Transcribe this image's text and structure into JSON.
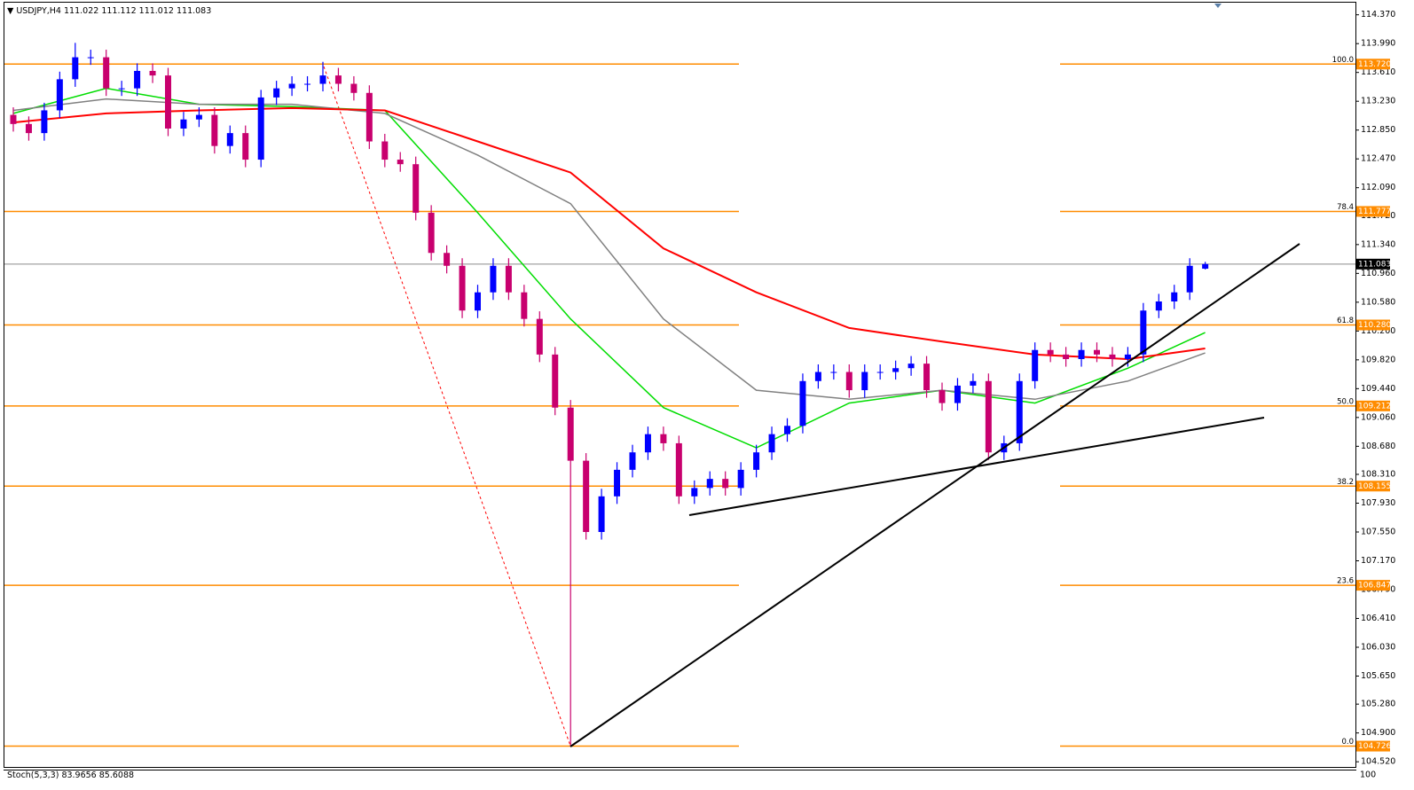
{
  "chart_data": {
    "type": "candlestick",
    "title": "USDJPY,H4",
    "open": [
      113.05,
      112.93,
      112.81,
      113.11,
      113.52,
      113.81,
      113.81,
      113.4,
      113.4,
      113.63,
      113.57,
      112.87,
      112.99,
      113.05,
      112.64,
      112.81,
      112.46,
      113.28,
      113.4,
      113.46,
      113.46,
      113.57,
      113.46,
      113.34,
      112.7,
      112.46,
      112.4,
      111.76,
      111.23,
      111.06,
      110.47,
      110.71,
      111.06,
      110.71,
      110.36,
      109.89,
      109.19,
      108.49,
      107.55,
      108.02,
      108.37,
      108.6,
      108.84,
      108.72,
      108.02,
      108.13,
      108.25,
      108.13,
      108.37,
      108.6,
      108.84,
      108.95,
      109.54,
      109.66,
      109.66,
      109.42,
      109.66,
      109.66,
      109.71,
      109.77,
      109.42,
      109.25,
      109.48,
      109.54,
      108.6,
      108.72,
      109.54,
      109.95,
      109.89,
      109.83,
      109.95,
      109.89,
      109.83,
      109.89,
      110.47,
      110.59,
      110.71,
      111.022
    ],
    "high": [
      113.15,
      113.03,
      113.21,
      113.62,
      114.0,
      113.91,
      113.91,
      113.5,
      113.73,
      113.73,
      113.67,
      113.09,
      113.15,
      113.15,
      112.91,
      112.91,
      113.38,
      113.5,
      113.56,
      113.56,
      113.75,
      113.67,
      113.56,
      113.44,
      112.8,
      112.56,
      112.5,
      111.86,
      111.33,
      111.16,
      110.81,
      111.16,
      111.16,
      110.81,
      110.46,
      109.99,
      109.29,
      108.59,
      108.12,
      108.47,
      108.7,
      108.94,
      108.94,
      108.82,
      108.23,
      108.35,
      108.35,
      108.47,
      108.7,
      108.94,
      109.05,
      109.64,
      109.76,
      109.76,
      109.76,
      109.76,
      109.76,
      109.81,
      109.87,
      109.87,
      109.52,
      109.58,
      109.64,
      109.64,
      108.82,
      109.64,
      110.05,
      110.05,
      109.99,
      110.05,
      110.05,
      109.99,
      109.99,
      110.57,
      110.69,
      110.81,
      111.16,
      111.112
    ],
    "low": [
      112.83,
      112.71,
      112.71,
      113.01,
      113.42,
      113.71,
      113.3,
      113.3,
      113.3,
      113.47,
      112.77,
      112.77,
      112.89,
      112.54,
      112.54,
      112.36,
      112.36,
      113.18,
      113.3,
      113.36,
      113.36,
      113.36,
      113.24,
      112.6,
      112.36,
      112.3,
      111.66,
      111.13,
      110.96,
      110.37,
      110.37,
      110.61,
      110.61,
      110.26,
      109.79,
      109.09,
      104.726,
      107.45,
      107.45,
      107.92,
      108.27,
      108.5,
      108.62,
      107.92,
      107.92,
      108.03,
      108.03,
      108.03,
      108.27,
      108.5,
      108.74,
      108.85,
      109.44,
      109.56,
      109.32,
      109.32,
      109.56,
      109.56,
      109.61,
      109.32,
      109.15,
      109.15,
      109.38,
      108.5,
      108.5,
      108.62,
      109.44,
      109.79,
      109.73,
      109.73,
      109.79,
      109.73,
      109.73,
      109.79,
      110.37,
      110.49,
      110.61,
      111.012
    ],
    "close": [
      112.93,
      112.81,
      113.11,
      113.52,
      113.81,
      113.81,
      113.4,
      113.4,
      113.63,
      113.57,
      112.87,
      112.99,
      113.05,
      112.64,
      112.81,
      112.46,
      113.28,
      113.4,
      113.46,
      113.46,
      113.57,
      113.46,
      113.34,
      112.7,
      112.46,
      112.4,
      111.76,
      111.23,
      111.06,
      110.47,
      110.71,
      111.06,
      110.71,
      110.36,
      109.89,
      109.19,
      108.49,
      107.55,
      108.02,
      108.37,
      108.6,
      108.84,
      108.72,
      108.02,
      108.13,
      108.25,
      108.13,
      108.37,
      108.6,
      108.84,
      108.95,
      109.54,
      109.66,
      109.66,
      109.42,
      109.66,
      109.66,
      109.71,
      109.77,
      109.42,
      109.25,
      109.48,
      109.54,
      108.6,
      108.72,
      109.54,
      109.95,
      109.89,
      109.83,
      109.95,
      109.89,
      109.83,
      109.89,
      110.47,
      110.59,
      110.71,
      111.06,
      111.083
    ],
    "up_color": "#0000ff",
    "down_color": "#c8006e",
    "ylim": [
      104.44,
      114.53
    ],
    "yticks": [
      {
        "value": 114.37,
        "label": "114.370"
      },
      {
        "value": 113.99,
        "label": "113.990"
      },
      {
        "value": 113.61,
        "label": "113.610"
      },
      {
        "value": 113.23,
        "label": "113.230"
      },
      {
        "value": 112.85,
        "label": "112.850"
      },
      {
        "value": 112.47,
        "label": "112.470"
      },
      {
        "value": 112.09,
        "label": "112.090"
      },
      {
        "value": 111.72,
        "label": "111.720"
      },
      {
        "value": 111.34,
        "label": "111.340"
      },
      {
        "value": 110.96,
        "label": "110.960"
      },
      {
        "value": 110.58,
        "label": "110.580"
      },
      {
        "value": 110.2,
        "label": "110.200"
      },
      {
        "value": 109.82,
        "label": "109.820"
      },
      {
        "value": 109.44,
        "label": "109.440"
      },
      {
        "value": 109.06,
        "label": "109.060"
      },
      {
        "value": 108.68,
        "label": "108.680"
      },
      {
        "value": 108.31,
        "label": "108.310"
      },
      {
        "value": 107.93,
        "label": "107.930"
      },
      {
        "value": 107.55,
        "label": "107.550"
      },
      {
        "value": 107.17,
        "label": "107.170"
      },
      {
        "value": 106.79,
        "label": "106.790"
      },
      {
        "value": 106.41,
        "label": "106.410"
      },
      {
        "value": 106.03,
        "label": "106.030"
      },
      {
        "value": 105.65,
        "label": "105.650"
      },
      {
        "value": 105.28,
        "label": "105.280"
      },
      {
        "value": 104.9,
        "label": "104.900"
      },
      {
        "value": 104.52,
        "label": "104.520"
      }
    ],
    "last_price": 111.083,
    "moving_averages": [
      {
        "color": "#00dd00",
        "x": [
          0,
          6,
          12,
          18,
          24,
          30,
          36,
          42,
          48,
          54,
          60,
          66,
          72,
          77
        ],
        "values": [
          113.07,
          113.4,
          113.19,
          113.16,
          113.11,
          111.76,
          110.36,
          109.19,
          108.66,
          109.25,
          109.42,
          109.25,
          109.71,
          110.18
        ]
      },
      {
        "color": "#808080",
        "x": [
          0,
          6,
          12,
          18,
          24,
          30,
          36,
          42,
          48,
          54,
          60,
          66,
          72,
          77
        ],
        "values": [
          113.11,
          113.26,
          113.19,
          113.19,
          113.07,
          112.52,
          111.88,
          110.36,
          109.42,
          109.3,
          109.42,
          109.3,
          109.54,
          109.91
        ]
      },
      {
        "color": "#ff0000",
        "x": [
          0,
          6,
          12,
          18,
          24,
          30,
          36,
          42,
          48,
          54,
          60,
          66,
          72,
          77
        ],
        "values": [
          112.95,
          113.07,
          113.11,
          113.14,
          113.11,
          112.7,
          112.29,
          111.29,
          110.71,
          110.24,
          110.06,
          109.89,
          109.83,
          109.97
        ]
      }
    ],
    "fibonacci": [
      {
        "ratio": "100.0",
        "price": {
          "value": 113.72,
          "label": "113.720"
        }
      },
      {
        "ratio": "78.4",
        "price": 111.777
      },
      {
        "ratio": "61.8",
        "price": {
          "value": 110.28,
          "label": "110.280"
        }
      },
      {
        "ratio": "50.0",
        "price": 109.212
      },
      {
        "ratio": "38.2",
        "price": 108.155
      },
      {
        "ratio": "23.6",
        "price": 106.847
      },
      {
        "ratio": "0.0",
        "price": 104.726
      }
    ],
    "fib_color": "#ff8c00",
    "indicator": {
      "label": "Stoch(5,3,3)",
      "main": 83.9656,
      "signal": 85.6088,
      "yticks": [
        100
      ]
    }
  }
}
